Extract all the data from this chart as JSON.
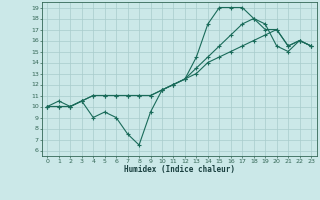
{
  "bg_color": "#cbe8e8",
  "grid_color": "#a8cccc",
  "line_color": "#1a6b5a",
  "marker": "+",
  "markersize": 3,
  "linewidth": 0.8,
  "xlabel": "Humidex (Indice chaleur)",
  "xlim": [
    -0.5,
    23.5
  ],
  "ylim": [
    5.5,
    19.5
  ],
  "xticks": [
    0,
    1,
    2,
    3,
    4,
    5,
    6,
    7,
    8,
    9,
    10,
    11,
    12,
    13,
    14,
    15,
    16,
    17,
    18,
    19,
    20,
    21,
    22,
    23
  ],
  "yticks": [
    6,
    7,
    8,
    9,
    10,
    11,
    12,
    13,
    14,
    15,
    16,
    17,
    18,
    19
  ],
  "line1_x": [
    0,
    1,
    2,
    3,
    4,
    5,
    6,
    7,
    8,
    9,
    10,
    11,
    12,
    13,
    14,
    15,
    16,
    17,
    18,
    19,
    20,
    21,
    22,
    23
  ],
  "line1_y": [
    10,
    10.5,
    10,
    10.5,
    9,
    9.5,
    9,
    7.5,
    6.5,
    9.5,
    11.5,
    12,
    12.5,
    14.5,
    17.5,
    19,
    19,
    19,
    18,
    17.5,
    15.5,
    15,
    16,
    15.5
  ],
  "line2_x": [
    0,
    1,
    2,
    3,
    4,
    5,
    6,
    7,
    8,
    9,
    10,
    11,
    12,
    13,
    14,
    15,
    16,
    17,
    18,
    19,
    20,
    21,
    22,
    23
  ],
  "line2_y": [
    10,
    10,
    10,
    10.5,
    11,
    11,
    11,
    11,
    11,
    11,
    11.5,
    12,
    12.5,
    13.5,
    14.5,
    15.5,
    16.5,
    17.5,
    18,
    17,
    17,
    15.5,
    16,
    15.5
  ],
  "line3_x": [
    0,
    1,
    2,
    3,
    4,
    5,
    6,
    7,
    8,
    9,
    10,
    11,
    12,
    13,
    14,
    15,
    16,
    17,
    18,
    19,
    20,
    21,
    22,
    23
  ],
  "line3_y": [
    10,
    10,
    10,
    10.5,
    11,
    11,
    11,
    11,
    11,
    11,
    11.5,
    12,
    12.5,
    13,
    14,
    14.5,
    15,
    15.5,
    16,
    16.5,
    17,
    15.5,
    16,
    15.5
  ]
}
